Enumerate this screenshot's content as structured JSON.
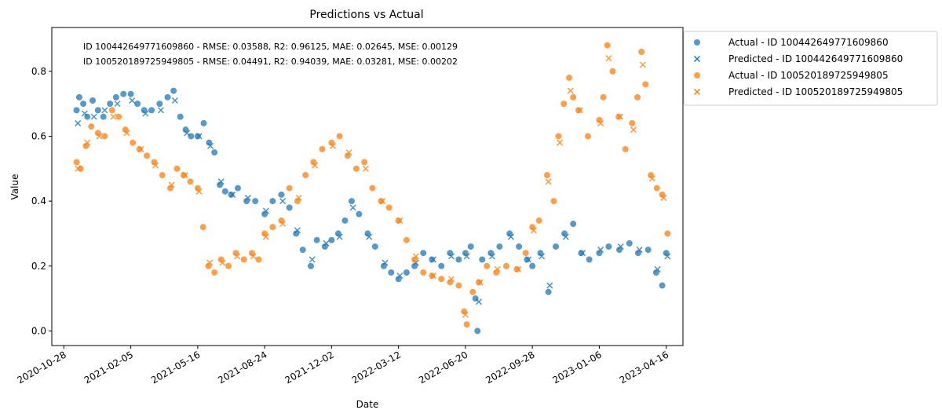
{
  "chart_data": {
    "type": "scatter",
    "title": "Predictions vs Actual",
    "xlabel": "Date",
    "ylabel": "Value",
    "xlim": [
      "2020-10-10",
      "2023-05-11"
    ],
    "ylim": [
      -0.045,
      0.935
    ],
    "x_ticks": [
      "2020-10-28",
      "2021-02-05",
      "2021-05-16",
      "2021-08-24",
      "2021-12-02",
      "2022-03-12",
      "2022-06-20",
      "2022-09-28",
      "2023-01-06",
      "2023-04-16"
    ],
    "y_ticks": [
      0.0,
      0.2,
      0.4,
      0.6,
      0.8
    ],
    "legend_position": "outside-right",
    "annotations": [
      "ID 100442649771609860 - RMSE: 0.03588, R2: 0.96125, MAE: 0.02645, MSE: 0.00129",
      "ID 100520189725949805 - RMSE: 0.04491, R2: 0.94039, MAE: 0.03281, MSE: 0.00202"
    ],
    "colors": {
      "series_a": "#1f77b4",
      "series_b": "#ff7f0e"
    },
    "series": [
      {
        "name": "Actual - ID 100442649771609860",
        "marker": "circle",
        "color": "#1f77b4",
        "points": [
          [
            "2020-11-16",
            0.68
          ],
          [
            "2020-11-20",
            0.72
          ],
          [
            "2020-11-26",
            0.7
          ],
          [
            "2020-12-02",
            0.66
          ],
          [
            "2020-12-10",
            0.71
          ],
          [
            "2020-12-18",
            0.68
          ],
          [
            "2020-12-26",
            0.66
          ],
          [
            "2021-01-05",
            0.7
          ],
          [
            "2021-01-14",
            0.72
          ],
          [
            "2021-01-25",
            0.73
          ],
          [
            "2021-02-05",
            0.73
          ],
          [
            "2021-02-15",
            0.7
          ],
          [
            "2021-02-25",
            0.68
          ],
          [
            "2021-03-08",
            0.68
          ],
          [
            "2021-03-20",
            0.7
          ],
          [
            "2021-04-01",
            0.72
          ],
          [
            "2021-04-10",
            0.74
          ],
          [
            "2021-04-20",
            0.66
          ],
          [
            "2021-04-28",
            0.62
          ],
          [
            "2021-05-06",
            0.6
          ],
          [
            "2021-05-16",
            0.6
          ],
          [
            "2021-05-25",
            0.64
          ],
          [
            "2021-06-02",
            0.58
          ],
          [
            "2021-06-10",
            0.55
          ],
          [
            "2021-06-18",
            0.45
          ],
          [
            "2021-06-26",
            0.43
          ],
          [
            "2021-07-05",
            0.42
          ],
          [
            "2021-07-15",
            0.44
          ],
          [
            "2021-07-28",
            0.4
          ],
          [
            "2021-08-10",
            0.4
          ],
          [
            "2021-08-24",
            0.36
          ],
          [
            "2021-09-05",
            0.4
          ],
          [
            "2021-09-18",
            0.42
          ],
          [
            "2021-09-30",
            0.38
          ],
          [
            "2021-10-10",
            0.3
          ],
          [
            "2021-10-20",
            0.25
          ],
          [
            "2021-11-01",
            0.2
          ],
          [
            "2021-11-10",
            0.28
          ],
          [
            "2021-11-22",
            0.26
          ],
          [
            "2021-12-02",
            0.28
          ],
          [
            "2021-12-12",
            0.3
          ],
          [
            "2021-12-22",
            0.34
          ],
          [
            "2022-01-01",
            0.4
          ],
          [
            "2022-01-12",
            0.36
          ],
          [
            "2022-01-25",
            0.3
          ],
          [
            "2022-02-05",
            0.26
          ],
          [
            "2022-02-18",
            0.2
          ],
          [
            "2022-03-01",
            0.18
          ],
          [
            "2022-03-12",
            0.16
          ],
          [
            "2022-03-24",
            0.18
          ],
          [
            "2022-04-05",
            0.2
          ],
          [
            "2022-04-18",
            0.24
          ],
          [
            "2022-05-01",
            0.22
          ],
          [
            "2022-05-15",
            0.2
          ],
          [
            "2022-05-28",
            0.24
          ],
          [
            "2022-06-10",
            0.22
          ],
          [
            "2022-06-20",
            0.24
          ],
          [
            "2022-06-28",
            0.26
          ],
          [
            "2022-07-05",
            0.1
          ],
          [
            "2022-07-08",
            0.0
          ],
          [
            "2022-07-15",
            0.22
          ],
          [
            "2022-07-28",
            0.24
          ],
          [
            "2022-08-10",
            0.26
          ],
          [
            "2022-08-25",
            0.3
          ],
          [
            "2022-09-08",
            0.26
          ],
          [
            "2022-09-20",
            0.22
          ],
          [
            "2022-09-28",
            0.2
          ],
          [
            "2022-10-10",
            0.24
          ],
          [
            "2022-10-22",
            0.12
          ],
          [
            "2022-11-02",
            0.26
          ],
          [
            "2022-11-15",
            0.3
          ],
          [
            "2022-11-28",
            0.33
          ],
          [
            "2022-12-10",
            0.24
          ],
          [
            "2022-12-22",
            0.22
          ],
          [
            "2023-01-06",
            0.24
          ],
          [
            "2023-01-20",
            0.26
          ],
          [
            "2023-02-05",
            0.25
          ],
          [
            "2023-02-20",
            0.27
          ],
          [
            "2023-03-05",
            0.24
          ],
          [
            "2023-03-20",
            0.25
          ],
          [
            "2023-04-01",
            0.18
          ],
          [
            "2023-04-10",
            0.14
          ],
          [
            "2023-04-16",
            0.24
          ]
        ]
      },
      {
        "name": "Predicted - ID 100442649771609860",
        "marker": "x",
        "color": "#1f77b4",
        "points": [
          [
            "2020-11-18",
            0.64
          ],
          [
            "2020-11-28",
            0.67
          ],
          [
            "2020-12-12",
            0.66
          ],
          [
            "2020-12-28",
            0.68
          ],
          [
            "2021-01-16",
            0.7
          ],
          [
            "2021-02-07",
            0.71
          ],
          [
            "2021-02-27",
            0.67
          ],
          [
            "2021-03-22",
            0.68
          ],
          [
            "2021-04-12",
            0.71
          ],
          [
            "2021-04-30",
            0.61
          ],
          [
            "2021-05-18",
            0.6
          ],
          [
            "2021-06-04",
            0.57
          ],
          [
            "2021-06-20",
            0.46
          ],
          [
            "2021-07-07",
            0.42
          ],
          [
            "2021-07-30",
            0.41
          ],
          [
            "2021-08-26",
            0.37
          ],
          [
            "2021-09-20",
            0.4
          ],
          [
            "2021-10-12",
            0.31
          ],
          [
            "2021-11-03",
            0.22
          ],
          [
            "2021-11-24",
            0.27
          ],
          [
            "2021-12-14",
            0.29
          ],
          [
            "2022-01-03",
            0.38
          ],
          [
            "2022-01-27",
            0.29
          ],
          [
            "2022-02-20",
            0.21
          ],
          [
            "2022-03-14",
            0.17
          ],
          [
            "2022-04-07",
            0.21
          ],
          [
            "2022-05-03",
            0.22
          ],
          [
            "2022-05-30",
            0.23
          ],
          [
            "2022-06-22",
            0.23
          ],
          [
            "2022-07-10",
            0.09
          ],
          [
            "2022-07-30",
            0.23
          ],
          [
            "2022-08-27",
            0.29
          ],
          [
            "2022-09-22",
            0.22
          ],
          [
            "2022-10-12",
            0.23
          ],
          [
            "2022-10-24",
            0.14
          ],
          [
            "2022-11-17",
            0.29
          ],
          [
            "2022-12-12",
            0.24
          ],
          [
            "2023-01-08",
            0.25
          ],
          [
            "2023-02-07",
            0.26
          ],
          [
            "2023-03-07",
            0.25
          ],
          [
            "2023-04-03",
            0.19
          ],
          [
            "2023-04-18",
            0.23
          ]
        ]
      },
      {
        "name": "Actual - ID 100520189725949805",
        "marker": "circle",
        "color": "#ff7f0e",
        "points": [
          [
            "2020-11-16",
            0.52
          ],
          [
            "2020-11-22",
            0.5
          ],
          [
            "2020-11-30",
            0.57
          ],
          [
            "2020-12-08",
            0.63
          ],
          [
            "2020-12-18",
            0.61
          ],
          [
            "2020-12-28",
            0.6
          ],
          [
            "2021-01-08",
            0.68
          ],
          [
            "2021-01-18",
            0.66
          ],
          [
            "2021-01-28",
            0.62
          ],
          [
            "2021-02-08",
            0.58
          ],
          [
            "2021-02-18",
            0.56
          ],
          [
            "2021-03-01",
            0.54
          ],
          [
            "2021-03-12",
            0.52
          ],
          [
            "2021-03-24",
            0.48
          ],
          [
            "2021-04-05",
            0.44
          ],
          [
            "2021-04-15",
            0.5
          ],
          [
            "2021-04-25",
            0.48
          ],
          [
            "2021-05-05",
            0.46
          ],
          [
            "2021-05-16",
            0.44
          ],
          [
            "2021-05-24",
            0.32
          ],
          [
            "2021-06-01",
            0.2
          ],
          [
            "2021-06-10",
            0.18
          ],
          [
            "2021-06-20",
            0.22
          ],
          [
            "2021-07-01",
            0.2
          ],
          [
            "2021-07-12",
            0.24
          ],
          [
            "2021-07-24",
            0.22
          ],
          [
            "2021-08-05",
            0.24
          ],
          [
            "2021-08-15",
            0.22
          ],
          [
            "2021-08-24",
            0.3
          ],
          [
            "2021-09-05",
            0.32
          ],
          [
            "2021-09-18",
            0.34
          ],
          [
            "2021-09-30",
            0.44
          ],
          [
            "2021-10-12",
            0.4
          ],
          [
            "2021-10-24",
            0.48
          ],
          [
            "2021-11-05",
            0.52
          ],
          [
            "2021-11-18",
            0.56
          ],
          [
            "2021-12-02",
            0.58
          ],
          [
            "2021-12-14",
            0.6
          ],
          [
            "2021-12-26",
            0.54
          ],
          [
            "2022-01-08",
            0.5
          ],
          [
            "2022-01-20",
            0.52
          ],
          [
            "2022-02-01",
            0.44
          ],
          [
            "2022-02-14",
            0.4
          ],
          [
            "2022-02-26",
            0.38
          ],
          [
            "2022-03-12",
            0.34
          ],
          [
            "2022-03-24",
            0.28
          ],
          [
            "2022-04-05",
            0.22
          ],
          [
            "2022-04-18",
            0.18
          ],
          [
            "2022-05-01",
            0.17
          ],
          [
            "2022-05-15",
            0.16
          ],
          [
            "2022-05-28",
            0.15
          ],
          [
            "2022-06-10",
            0.14
          ],
          [
            "2022-06-18",
            0.06
          ],
          [
            "2022-06-22",
            0.02
          ],
          [
            "2022-07-01",
            0.12
          ],
          [
            "2022-07-10",
            0.15
          ],
          [
            "2022-07-22",
            0.2
          ],
          [
            "2022-08-05",
            0.18
          ],
          [
            "2022-08-20",
            0.2
          ],
          [
            "2022-09-05",
            0.19
          ],
          [
            "2022-09-18",
            0.24
          ],
          [
            "2022-09-28",
            0.32
          ],
          [
            "2022-10-08",
            0.34
          ],
          [
            "2022-10-20",
            0.48
          ],
          [
            "2022-10-30",
            0.4
          ],
          [
            "2022-11-06",
            0.6
          ],
          [
            "2022-11-14",
            0.7
          ],
          [
            "2022-11-22",
            0.78
          ],
          [
            "2022-11-28",
            0.72
          ],
          [
            "2022-12-06",
            0.68
          ],
          [
            "2022-12-20",
            0.6
          ],
          [
            "2023-01-06",
            0.65
          ],
          [
            "2023-01-12",
            0.72
          ],
          [
            "2023-01-18",
            0.88
          ],
          [
            "2023-01-26",
            0.8
          ],
          [
            "2023-02-04",
            0.66
          ],
          [
            "2023-02-14",
            0.56
          ],
          [
            "2023-02-24",
            0.64
          ],
          [
            "2023-03-04",
            0.72
          ],
          [
            "2023-03-10",
            0.86
          ],
          [
            "2023-03-16",
            0.76
          ],
          [
            "2023-03-24",
            0.48
          ],
          [
            "2023-04-02",
            0.44
          ],
          [
            "2023-04-10",
            0.42
          ],
          [
            "2023-04-18",
            0.3
          ]
        ]
      },
      {
        "name": "Predicted - ID 100520189725949805",
        "marker": "x",
        "color": "#ff7f0e",
        "points": [
          [
            "2020-11-18",
            0.5
          ],
          [
            "2020-12-02",
            0.58
          ],
          [
            "2020-12-20",
            0.6
          ],
          [
            "2021-01-10",
            0.66
          ],
          [
            "2021-01-30",
            0.61
          ],
          [
            "2021-02-20",
            0.56
          ],
          [
            "2021-03-14",
            0.51
          ],
          [
            "2021-04-07",
            0.45
          ],
          [
            "2021-04-27",
            0.48
          ],
          [
            "2021-05-18",
            0.43
          ],
          [
            "2021-06-03",
            0.21
          ],
          [
            "2021-06-22",
            0.21
          ],
          [
            "2021-07-14",
            0.23
          ],
          [
            "2021-08-07",
            0.23
          ],
          [
            "2021-08-26",
            0.29
          ],
          [
            "2021-09-20",
            0.33
          ],
          [
            "2021-10-14",
            0.41
          ],
          [
            "2021-11-07",
            0.51
          ],
          [
            "2021-12-04",
            0.57
          ],
          [
            "2021-12-28",
            0.55
          ],
          [
            "2022-01-22",
            0.5
          ],
          [
            "2022-02-16",
            0.4
          ],
          [
            "2022-03-14",
            0.34
          ],
          [
            "2022-04-07",
            0.23
          ],
          [
            "2022-05-03",
            0.17
          ],
          [
            "2022-05-30",
            0.16
          ],
          [
            "2022-06-20",
            0.05
          ],
          [
            "2022-07-12",
            0.15
          ],
          [
            "2022-08-07",
            0.19
          ],
          [
            "2022-09-07",
            0.19
          ],
          [
            "2022-09-30",
            0.31
          ],
          [
            "2022-10-22",
            0.46
          ],
          [
            "2022-11-08",
            0.58
          ],
          [
            "2022-11-24",
            0.74
          ],
          [
            "2022-12-08",
            0.68
          ],
          [
            "2023-01-08",
            0.64
          ],
          [
            "2023-01-20",
            0.84
          ],
          [
            "2023-02-06",
            0.66
          ],
          [
            "2023-02-26",
            0.62
          ],
          [
            "2023-03-12",
            0.82
          ],
          [
            "2023-03-26",
            0.47
          ],
          [
            "2023-04-12",
            0.41
          ]
        ]
      }
    ]
  }
}
